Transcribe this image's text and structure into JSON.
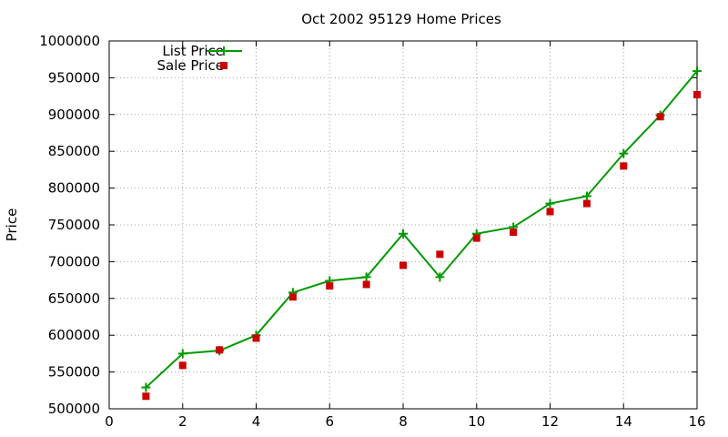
{
  "chart_data": {
    "type": "line",
    "title": "Oct 2002 95129 Home Prices",
    "xlabel": "",
    "ylabel": "Price",
    "xlim": [
      0,
      16
    ],
    "ylim": [
      500000,
      1000000
    ],
    "xticks": [
      0,
      2,
      4,
      6,
      8,
      10,
      12,
      14,
      16
    ],
    "yticks": [
      500000,
      550000,
      600000,
      650000,
      700000,
      750000,
      800000,
      850000,
      900000,
      950000,
      1000000
    ],
    "grid": true,
    "legend_position": "top-left",
    "series": [
      {
        "name": "List Price",
        "style": "linespoints",
        "marker": "plus",
        "color": "#009900",
        "x": [
          1,
          2,
          3,
          4,
          5,
          6,
          7,
          8,
          9,
          10,
          11,
          12,
          13,
          14,
          15,
          16
        ],
        "y": [
          529000,
          575000,
          579000,
          600000,
          658000,
          674000,
          679000,
          738000,
          679000,
          738000,
          747000,
          779000,
          789000,
          847000,
          899000,
          959000
        ]
      },
      {
        "name": "Sale Price",
        "style": "points",
        "marker": "square",
        "color": "#cc0000",
        "x": [
          1,
          2,
          3,
          4,
          5,
          6,
          7,
          8,
          9,
          10,
          11,
          12,
          13,
          14,
          15,
          16
        ],
        "y": [
          517000,
          559000,
          580000,
          596000,
          652000,
          667000,
          669000,
          695000,
          710000,
          732000,
          740000,
          768000,
          779000,
          830000,
          897000,
          927000
        ]
      }
    ]
  }
}
